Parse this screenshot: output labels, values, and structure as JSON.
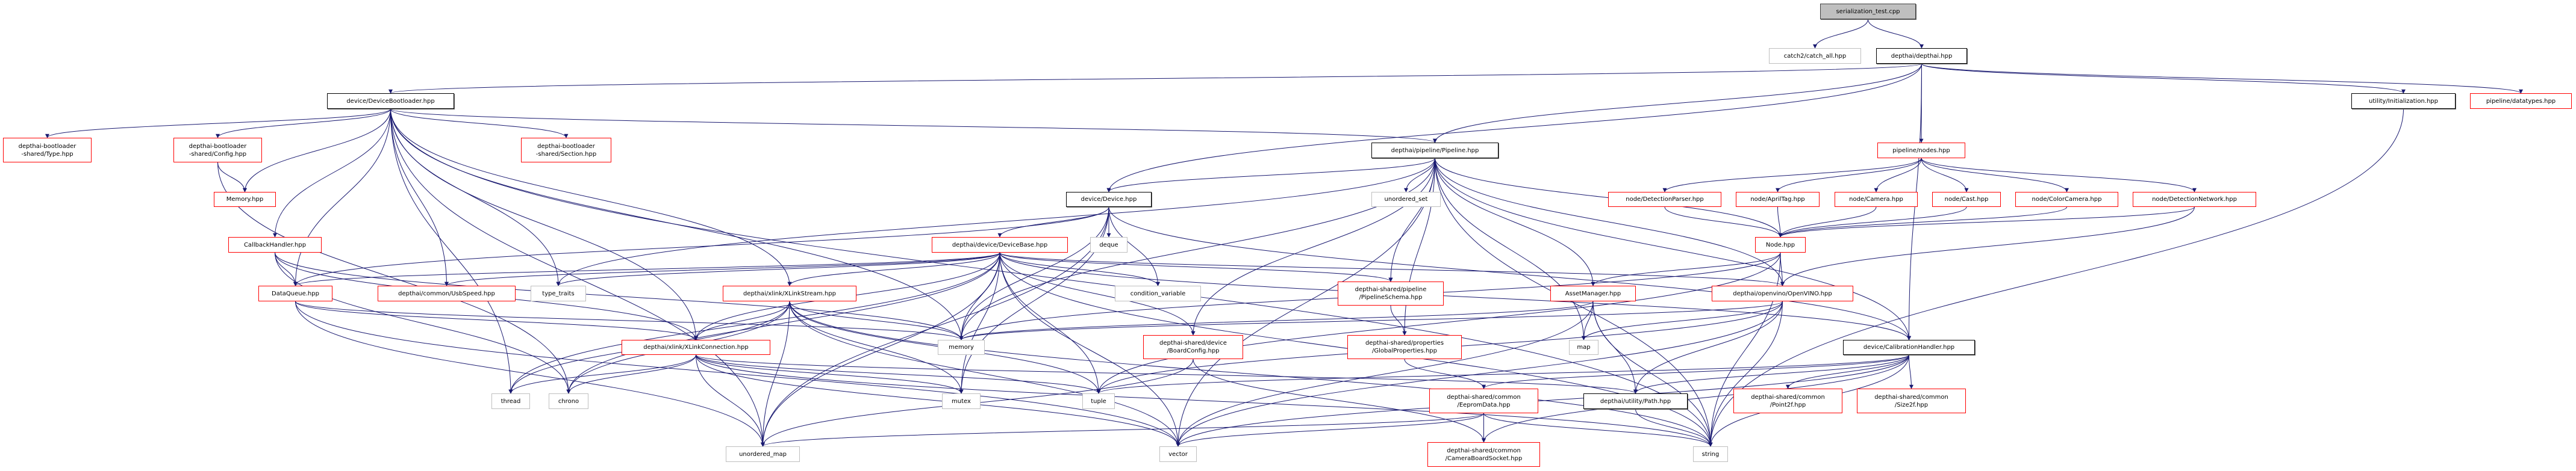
{
  "colors": {
    "edge": "#191970",
    "root_fill": "#bfbfbf",
    "documented_border": "#000000",
    "truncated_border": "#ff0000",
    "system_border": "#bfbfbf"
  },
  "nodes": {
    "root": {
      "label": "serialization_test.cpp",
      "kind": "root"
    },
    "catch2": {
      "label": "catch2/catch_all.hpp",
      "kind": "sys"
    },
    "depthai": {
      "label": "depthai/depthai.hpp",
      "kind": "doc"
    },
    "bootloader": {
      "label": "device/DeviceBootloader.hpp",
      "kind": "doc"
    },
    "initialization": {
      "label": "utility/Initialization.hpp",
      "kind": "doc"
    },
    "datatypes": {
      "label": "pipeline/datatypes.hpp",
      "kind": "red"
    },
    "pipeline": {
      "label": "depthai/pipeline/Pipeline.hpp",
      "kind": "doc"
    },
    "nodes": {
      "label": "pipeline/nodes.hpp",
      "kind": "red"
    },
    "btype": {
      "label": "depthai-bootloader\n-shared/Type.hpp",
      "kind": "red"
    },
    "bconfig": {
      "label": "depthai-bootloader\n-shared/Config.hpp",
      "kind": "red"
    },
    "bsection": {
      "label": "depthai-bootloader\n-shared/Section.hpp",
      "kind": "red"
    },
    "memoryhpp": {
      "label": "Memory.hpp",
      "kind": "red"
    },
    "device": {
      "label": "device/Device.hpp",
      "kind": "doc"
    },
    "unordered_set": {
      "label": "unordered_set",
      "kind": "sys"
    },
    "detparser": {
      "label": "node/DetectionParser.hpp",
      "kind": "red"
    },
    "apriltag": {
      "label": "node/AprilTag.hpp",
      "kind": "red"
    },
    "camera": {
      "label": "node/Camera.hpp",
      "kind": "red"
    },
    "cast": {
      "label": "node/Cast.hpp",
      "kind": "red"
    },
    "colorcamera": {
      "label": "node/ColorCamera.hpp",
      "kind": "red"
    },
    "detnet": {
      "label": "node/DetectionNetwork.hpp",
      "kind": "red"
    },
    "callback": {
      "label": "CallbackHandler.hpp",
      "kind": "red"
    },
    "devicebase": {
      "label": "depthai/device/DeviceBase.hpp",
      "kind": "red"
    },
    "deque": {
      "label": "deque",
      "kind": "sys"
    },
    "nodehpp": {
      "label": "Node.hpp",
      "kind": "red"
    },
    "dataqueue": {
      "label": "DataQueue.hpp",
      "kind": "red"
    },
    "usbspeed": {
      "label": "depthai/common/UsbSpeed.hpp",
      "kind": "red"
    },
    "type_traits": {
      "label": "type_traits",
      "kind": "sys"
    },
    "xlinkstream": {
      "label": "depthai/xlink/XLinkStream.hpp",
      "kind": "red"
    },
    "condvar": {
      "label": "condition_variable",
      "kind": "sys"
    },
    "pschema": {
      "label": "depthai-shared/pipeline\n/PipelineSchema.hpp",
      "kind": "red"
    },
    "assetmgr": {
      "label": "AssetManager.hpp",
      "kind": "red"
    },
    "openvino": {
      "label": "depthai/openvino/OpenVINO.hpp",
      "kind": "red"
    },
    "xlinkconn": {
      "label": "depthai/xlink/XLinkConnection.hpp",
      "kind": "red"
    },
    "memory": {
      "label": "memory",
      "kind": "sys"
    },
    "boardconfig": {
      "label": "depthai-shared/device\n/BoardConfig.hpp",
      "kind": "red"
    },
    "globalprops": {
      "label": "depthai-shared/properties\n/GlobalProperties.hpp",
      "kind": "red"
    },
    "map": {
      "label": "map",
      "kind": "sys"
    },
    "calib": {
      "label": "device/CalibrationHandler.hpp",
      "kind": "doc"
    },
    "thread": {
      "label": "thread",
      "kind": "sys"
    },
    "chrono": {
      "label": "chrono",
      "kind": "sys"
    },
    "mutex": {
      "label": "mutex",
      "kind": "sys"
    },
    "tuple": {
      "label": "tuple",
      "kind": "sys"
    },
    "eeprom": {
      "label": "depthai-shared/common\n/EepromData.hpp",
      "kind": "red"
    },
    "path": {
      "label": "depthai/utility/Path.hpp",
      "kind": "doc"
    },
    "point2f": {
      "label": "depthai-shared/common\n/Point2f.hpp",
      "kind": "red"
    },
    "size2f": {
      "label": "depthai-shared/common\n/Size2f.hpp",
      "kind": "red"
    },
    "unordered_map": {
      "label": "unordered_map",
      "kind": "sys"
    },
    "vector": {
      "label": "vector",
      "kind": "sys"
    },
    "cbsocket": {
      "label": "depthai-shared/common\n/CameraBoardSocket.hpp",
      "kind": "red"
    },
    "string": {
      "label": "string",
      "kind": "sys"
    }
  },
  "edges": [
    [
      "root",
      "catch2"
    ],
    [
      "root",
      "depthai"
    ],
    [
      "depthai",
      "bootloader"
    ],
    [
      "depthai",
      "device"
    ],
    [
      "depthai",
      "pipeline"
    ],
    [
      "depthai",
      "nodes"
    ],
    [
      "depthai",
      "initialization"
    ],
    [
      "depthai",
      "datatypes"
    ],
    [
      "depthai",
      "calib"
    ],
    [
      "bootloader",
      "btype"
    ],
    [
      "bootloader",
      "bconfig"
    ],
    [
      "bootloader",
      "bsection"
    ],
    [
      "bootloader",
      "memoryhpp"
    ],
    [
      "bootloader",
      "callback"
    ],
    [
      "bootloader",
      "dataqueue"
    ],
    [
      "bootloader",
      "usbspeed"
    ],
    [
      "bootloader",
      "type_traits"
    ],
    [
      "bootloader",
      "xlinkconn"
    ],
    [
      "bootloader",
      "xlinkstream"
    ],
    [
      "bootloader",
      "pipeline"
    ],
    [
      "bootloader",
      "memory"
    ],
    [
      "bootloader",
      "thread"
    ],
    [
      "bootloader",
      "unordered_map"
    ],
    [
      "bootloader",
      "string"
    ],
    [
      "bconfig",
      "memoryhpp"
    ],
    [
      "bconfig",
      "chrono"
    ],
    [
      "initialization",
      "string"
    ],
    [
      "pipeline",
      "device"
    ],
    [
      "pipeline",
      "unordered_set"
    ],
    [
      "pipeline",
      "pschema"
    ],
    [
      "pipeline",
      "globalprops"
    ],
    [
      "pipeline",
      "assetmgr"
    ],
    [
      "pipeline",
      "nodehpp"
    ],
    [
      "pipeline",
      "openvino"
    ],
    [
      "pipeline",
      "map"
    ],
    [
      "pipeline",
      "calib"
    ],
    [
      "pipeline",
      "boardconfig"
    ],
    [
      "pipeline",
      "memory"
    ],
    [
      "pipeline",
      "vector"
    ],
    [
      "pipeline",
      "string"
    ],
    [
      "pipeline",
      "type_traits"
    ],
    [
      "nodes",
      "detparser"
    ],
    [
      "nodes",
      "apriltag"
    ],
    [
      "nodes",
      "camera"
    ],
    [
      "nodes",
      "cast"
    ],
    [
      "nodes",
      "colorcamera"
    ],
    [
      "nodes",
      "detnet"
    ],
    [
      "detparser",
      "nodehpp"
    ],
    [
      "apriltag",
      "nodehpp"
    ],
    [
      "camera",
      "nodehpp"
    ],
    [
      "cast",
      "nodehpp"
    ],
    [
      "colorcamera",
      "nodehpp"
    ],
    [
      "detnet",
      "nodehpp"
    ],
    [
      "detnet",
      "openvino"
    ],
    [
      "device",
      "devicebase"
    ],
    [
      "device",
      "deque"
    ],
    [
      "device",
      "condvar"
    ],
    [
      "device",
      "memory"
    ],
    [
      "device",
      "mutex"
    ],
    [
      "device",
      "dataqueue"
    ],
    [
      "device",
      "calib"
    ],
    [
      "device",
      "unordered_map"
    ],
    [
      "devicebase",
      "xlinkstream"
    ],
    [
      "devicebase",
      "xlinkconn"
    ],
    [
      "devicebase",
      "memory"
    ],
    [
      "devicebase",
      "mutex"
    ],
    [
      "devicebase",
      "tuple"
    ],
    [
      "devicebase",
      "vector"
    ],
    [
      "devicebase",
      "condvar"
    ],
    [
      "devicebase",
      "boardconfig"
    ],
    [
      "devicebase",
      "calib"
    ],
    [
      "devicebase",
      "openvino"
    ],
    [
      "devicebase",
      "pschema"
    ],
    [
      "devicebase",
      "type_traits"
    ],
    [
      "devicebase",
      "usbspeed"
    ],
    [
      "devicebase",
      "thread"
    ],
    [
      "devicebase",
      "chrono"
    ],
    [
      "devicebase",
      "unordered_map"
    ],
    [
      "devicebase",
      "string"
    ],
    [
      "devicebase",
      "dataqueue"
    ],
    [
      "nodehpp",
      "assetmgr"
    ],
    [
      "nodehpp",
      "openvino"
    ],
    [
      "nodehpp",
      "memory"
    ],
    [
      "nodehpp",
      "tuple"
    ],
    [
      "nodehpp",
      "string"
    ],
    [
      "callback",
      "dataqueue"
    ],
    [
      "callback",
      "xlinkconn"
    ],
    [
      "callback",
      "memory"
    ],
    [
      "callback",
      "chrono"
    ],
    [
      "dataqueue",
      "xlinkconn"
    ],
    [
      "dataqueue",
      "memory"
    ],
    [
      "dataqueue",
      "unordered_map"
    ],
    [
      "dataqueue",
      "vector"
    ],
    [
      "xlinkstream",
      "xlinkconn"
    ],
    [
      "xlinkstream",
      "memory"
    ],
    [
      "xlinkstream",
      "mutex"
    ],
    [
      "xlinkstream",
      "tuple"
    ],
    [
      "xlinkstream",
      "unordered_map"
    ],
    [
      "xlinkstream",
      "vector"
    ],
    [
      "xlinkstream",
      "string"
    ],
    [
      "xlinkstream",
      "thread"
    ],
    [
      "xlinkstream",
      "chrono"
    ],
    [
      "xlinkconn",
      "thread"
    ],
    [
      "xlinkconn",
      "chrono"
    ],
    [
      "xlinkconn",
      "mutex"
    ],
    [
      "xlinkconn",
      "tuple"
    ],
    [
      "xlinkconn",
      "unordered_map"
    ],
    [
      "xlinkconn",
      "vector"
    ],
    [
      "xlinkconn",
      "string"
    ],
    [
      "xlinkconn",
      "path"
    ],
    [
      "pschema",
      "globalprops"
    ],
    [
      "globalprops",
      "eeprom"
    ],
    [
      "boardconfig",
      "cbsocket"
    ],
    [
      "boardconfig",
      "unordered_map"
    ],
    [
      "assetmgr",
      "memory"
    ],
    [
      "assetmgr",
      "map"
    ],
    [
      "assetmgr",
      "path"
    ],
    [
      "assetmgr",
      "vector"
    ],
    [
      "assetmgr",
      "string"
    ],
    [
      "openvino",
      "map"
    ],
    [
      "openvino",
      "path"
    ],
    [
      "openvino",
      "string"
    ],
    [
      "openvino",
      "vector"
    ],
    [
      "openvino",
      "tuple"
    ],
    [
      "openvino",
      "memory"
    ],
    [
      "calib",
      "point2f"
    ],
    [
      "calib",
      "size2f"
    ],
    [
      "calib",
      "eeprom"
    ],
    [
      "calib",
      "cbsocket"
    ],
    [
      "calib",
      "path"
    ],
    [
      "calib",
      "string"
    ],
    [
      "calib",
      "vector"
    ],
    [
      "calib",
      "tuple"
    ],
    [
      "eeprom",
      "cbsocket"
    ],
    [
      "eeprom",
      "string"
    ],
    [
      "eeprom",
      "vector"
    ],
    [
      "eeprom",
      "unordered_map"
    ],
    [
      "path",
      "string"
    ]
  ]
}
